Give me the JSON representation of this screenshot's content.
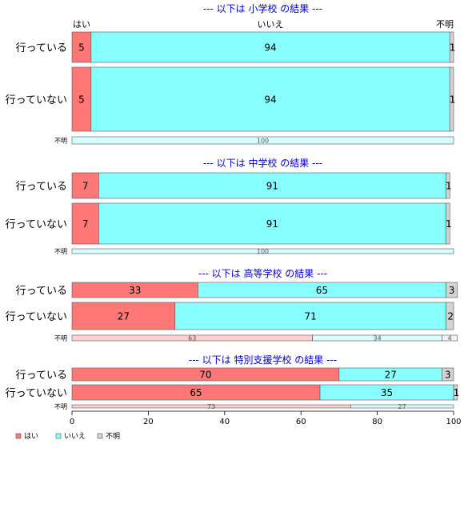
{
  "chart_data": {
    "type": "bar",
    "orientation": "horizontal",
    "stacked": true,
    "normalized": true,
    "xlim": [
      0,
      100
    ],
    "x_ticks": [
      0,
      20,
      40,
      60,
      80,
      100
    ],
    "column_headers": [
      "はい",
      "いいえ",
      "不明"
    ],
    "legend": {
      "position": "bottom-left",
      "entries": [
        {
          "label": "はい",
          "color": "#ff7777"
        },
        {
          "label": "いいえ",
          "color": "#88ffff"
        },
        {
          "label": "不明",
          "color": "#d3d3d3"
        }
      ]
    },
    "groups": [
      {
        "title": "--- 以下は 小学校 の結果 ---",
        "rows": [
          {
            "label": "行っている",
            "values": [
              5,
              94,
              1
            ],
            "labels": [
              "5",
              "94",
              "1"
            ]
          },
          {
            "label": "行っていない",
            "values": [
              5,
              94,
              1
            ],
            "labels": [
              "5",
              "94",
              "1"
            ]
          },
          {
            "label": "不明",
            "small": true,
            "values": [
              0,
              100,
              0
            ],
            "labels": [
              "",
              "100",
              ""
            ]
          }
        ]
      },
      {
        "title": "--- 以下は 中学校 の結果 ---",
        "rows": [
          {
            "label": "行っている",
            "values": [
              7,
              91,
              1
            ],
            "labels": [
              "7",
              "91",
              "1"
            ]
          },
          {
            "label": "行っていない",
            "values": [
              7,
              91,
              1
            ],
            "labels": [
              "7",
              "91",
              "1"
            ]
          },
          {
            "label": "不明",
            "small": true,
            "values": [
              0,
              100,
              0
            ],
            "labels": [
              "",
              "100",
              ""
            ]
          }
        ]
      },
      {
        "title": "--- 以下は 高等学校 の結果 ---",
        "rows": [
          {
            "label": "行っている",
            "values": [
              33,
              65,
              3
            ],
            "labels": [
              "33",
              "65",
              "3"
            ]
          },
          {
            "label": "行っていない",
            "values": [
              27,
              71,
              2
            ],
            "labels": [
              "27",
              "71",
              "2"
            ]
          },
          {
            "label": "不明",
            "small": true,
            "values": [
              63,
              34,
              4
            ],
            "labels": [
              "63",
              "34",
              "4"
            ]
          }
        ]
      },
      {
        "title": "--- 以下は 特別支援学校 の結果 ---",
        "rows": [
          {
            "label": "行っている",
            "values": [
              70,
              27,
              3
            ],
            "labels": [
              "70",
              "27",
              "3"
            ]
          },
          {
            "label": "行っていない",
            "values": [
              65,
              35,
              1
            ],
            "labels": [
              "65",
              "35",
              "1"
            ]
          },
          {
            "label": "不明",
            "small": true,
            "values": [
              73,
              27,
              0
            ],
            "labels": [
              "73",
              "27",
              ""
            ]
          }
        ]
      }
    ]
  }
}
